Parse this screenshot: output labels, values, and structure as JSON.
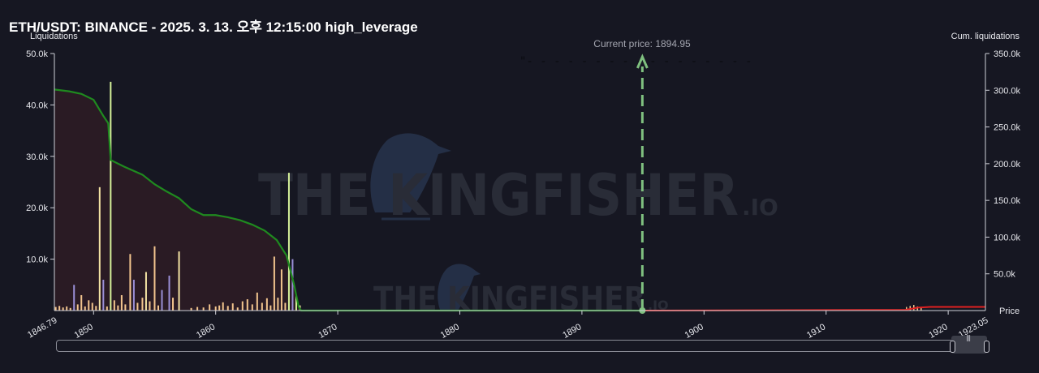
{
  "page_title": "ETH/USDT: BINANCE - 2025. 3. 13. 오후 12:15:00 high_leverage",
  "colors": {
    "background": "#161722",
    "short_liq_line": "#1f8a1f",
    "long_liq_line": "#e02020",
    "area_fill": "#2a1b24",
    "current_price_line": "#7fc07f",
    "bar_colors": [
      "#f3c58e",
      "#f3e3a3",
      "#9a8fd6",
      "#d6f29a"
    ]
  },
  "watermark": {
    "brand_large": "THE KINGFISHER",
    "suffix_large": ".IO",
    "brand_small": "THE KINGFISHER",
    "suffix_small": ".IO"
  },
  "header_annotation": "\"- - -  - -  - - -  - -  - -  - - -  - -",
  "chart_data": {
    "type": "bar",
    "title": "ETH/USDT: BINANCE - 2025. 3. 13. 오후 12:15:00 high_leverage",
    "x_label": "Price",
    "y_left_label": "Liquidations",
    "y_right_label": "Cum. liquidations",
    "x_range": [
      1846.79,
      1923.05
    ],
    "x_edge_labels": [
      "1846.79",
      "1923.05"
    ],
    "x_ticks": [
      1850,
      1860,
      1870,
      1880,
      1890,
      1900,
      1910,
      1920
    ],
    "y_left_range": [
      0,
      50000
    ],
    "y_left_ticks": [
      10000,
      20000,
      30000,
      40000,
      50000
    ],
    "y_left_tick_labels": [
      "10.0k",
      "20.0k",
      "30.0k",
      "40.0k",
      "50.0k"
    ],
    "y_right_range": [
      0,
      350000
    ],
    "y_right_ticks": [
      50000,
      100000,
      150000,
      200000,
      250000,
      300000,
      350000
    ],
    "y_right_tick_labels": [
      "50.0k",
      "100.0k",
      "150.0k",
      "200.0k",
      "250.0k",
      "300.0k",
      "350.0k"
    ],
    "current_price": 1894.95,
    "current_price_label": "Current price: 1894.95",
    "grid": false,
    "liquidation_bars": [
      {
        "price": 1846.9,
        "value": 700,
        "color": 0
      },
      {
        "price": 1847.2,
        "value": 900,
        "color": 0
      },
      {
        "price": 1847.5,
        "value": 600,
        "color": 0
      },
      {
        "price": 1847.8,
        "value": 800,
        "color": 0
      },
      {
        "price": 1848.1,
        "value": 500,
        "color": 0
      },
      {
        "price": 1848.4,
        "value": 5000,
        "color": 2
      },
      {
        "price": 1848.7,
        "value": 1200,
        "color": 0
      },
      {
        "price": 1849.0,
        "value": 3000,
        "color": 0
      },
      {
        "price": 1849.3,
        "value": 800,
        "color": 0
      },
      {
        "price": 1849.6,
        "value": 2000,
        "color": 0
      },
      {
        "price": 1849.9,
        "value": 1500,
        "color": 0
      },
      {
        "price": 1850.2,
        "value": 900,
        "color": 0
      },
      {
        "price": 1850.5,
        "value": 24000,
        "color": 1
      },
      {
        "price": 1850.8,
        "value": 6000,
        "color": 2
      },
      {
        "price": 1851.1,
        "value": 800,
        "color": 0
      },
      {
        "price": 1851.4,
        "value": 44500,
        "color": 3
      },
      {
        "price": 1851.7,
        "value": 2000,
        "color": 0
      },
      {
        "price": 1852.0,
        "value": 1000,
        "color": 0
      },
      {
        "price": 1852.3,
        "value": 3000,
        "color": 0
      },
      {
        "price": 1852.6,
        "value": 1200,
        "color": 0
      },
      {
        "price": 1853.0,
        "value": 11000,
        "color": 0
      },
      {
        "price": 1853.3,
        "value": 6000,
        "color": 2
      },
      {
        "price": 1853.6,
        "value": 1500,
        "color": 0
      },
      {
        "price": 1854.0,
        "value": 2500,
        "color": 0
      },
      {
        "price": 1854.3,
        "value": 7500,
        "color": 1
      },
      {
        "price": 1854.6,
        "value": 1800,
        "color": 0
      },
      {
        "price": 1855.0,
        "value": 12500,
        "color": 0
      },
      {
        "price": 1855.3,
        "value": 1000,
        "color": 0
      },
      {
        "price": 1855.6,
        "value": 4000,
        "color": 2
      },
      {
        "price": 1856.2,
        "value": 6800,
        "color": 2
      },
      {
        "price": 1856.5,
        "value": 2500,
        "color": 0
      },
      {
        "price": 1857.0,
        "value": 11500,
        "color": 1
      },
      {
        "price": 1858.0,
        "value": 500,
        "color": 0
      },
      {
        "price": 1858.5,
        "value": 700,
        "color": 0
      },
      {
        "price": 1859.0,
        "value": 600,
        "color": 0
      },
      {
        "price": 1859.5,
        "value": 1200,
        "color": 0
      },
      {
        "price": 1860.0,
        "value": 800,
        "color": 0
      },
      {
        "price": 1860.3,
        "value": 1000,
        "color": 0
      },
      {
        "price": 1860.6,
        "value": 1600,
        "color": 0
      },
      {
        "price": 1861.0,
        "value": 900,
        "color": 0
      },
      {
        "price": 1861.4,
        "value": 1400,
        "color": 0
      },
      {
        "price": 1861.8,
        "value": 600,
        "color": 0
      },
      {
        "price": 1862.2,
        "value": 1800,
        "color": 0
      },
      {
        "price": 1862.6,
        "value": 2200,
        "color": 0
      },
      {
        "price": 1863.0,
        "value": 1200,
        "color": 0
      },
      {
        "price": 1863.4,
        "value": 3500,
        "color": 0
      },
      {
        "price": 1863.8,
        "value": 1500,
        "color": 0
      },
      {
        "price": 1864.2,
        "value": 2400,
        "color": 0
      },
      {
        "price": 1864.5,
        "value": 1000,
        "color": 0
      },
      {
        "price": 1864.8,
        "value": 10500,
        "color": 0
      },
      {
        "price": 1865.1,
        "value": 2500,
        "color": 0
      },
      {
        "price": 1865.4,
        "value": 8000,
        "color": 0
      },
      {
        "price": 1865.7,
        "value": 1500,
        "color": 0
      },
      {
        "price": 1866.0,
        "value": 26800,
        "color": 3
      },
      {
        "price": 1866.3,
        "value": 10000,
        "color": 2
      },
      {
        "price": 1866.6,
        "value": 3000,
        "color": 3
      },
      {
        "price": 1866.9,
        "value": 1000,
        "color": 1
      }
    ],
    "cumulative_short_line": [
      [
        1846.79,
        301000
      ],
      [
        1848.0,
        298500
      ],
      [
        1849.0,
        295000
      ],
      [
        1850.0,
        287000
      ],
      [
        1850.8,
        265000
      ],
      [
        1851.2,
        255000
      ],
      [
        1851.4,
        205000
      ],
      [
        1852.5,
        196000
      ],
      [
        1854.0,
        185000
      ],
      [
        1855.0,
        172000
      ],
      [
        1856.0,
        162000
      ],
      [
        1857.0,
        153000
      ],
      [
        1858.0,
        138000
      ],
      [
        1859.0,
        130000
      ],
      [
        1860.0,
        130000
      ],
      [
        1861.0,
        127000
      ],
      [
        1862.0,
        123000
      ],
      [
        1863.0,
        117000
      ],
      [
        1864.0,
        109000
      ],
      [
        1865.0,
        96000
      ],
      [
        1865.8,
        75000
      ],
      [
        1866.4,
        37000
      ],
      [
        1866.8,
        5000
      ],
      [
        1867.0,
        0
      ],
      [
        1894.95,
        0
      ]
    ],
    "long_liq_bars": [
      {
        "price": 1916.6,
        "value": 700
      },
      {
        "price": 1916.9,
        "value": 900
      },
      {
        "price": 1917.2,
        "value": 1100
      },
      {
        "price": 1917.5,
        "value": 800
      },
      {
        "price": 1917.8,
        "value": 600
      }
    ],
    "cumulative_long_line": [
      [
        1894.95,
        0
      ],
      [
        1916.5,
        1000
      ],
      [
        1917.5,
        4000
      ],
      [
        1918.5,
        5000
      ],
      [
        1923.05,
        5000
      ]
    ]
  }
}
